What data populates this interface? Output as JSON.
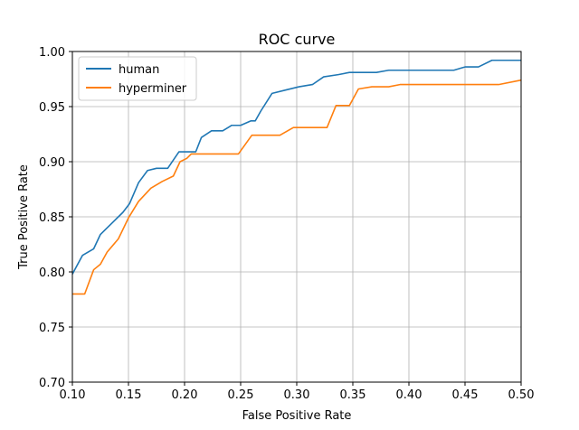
{
  "chart_data": {
    "type": "line",
    "title": "ROC curve",
    "xlabel": "False Positive Rate",
    "ylabel": "True Positive Rate",
    "xlim": [
      0.1,
      0.5
    ],
    "ylim": [
      0.7,
      1.0
    ],
    "xticks": [
      "0.10",
      "0.15",
      "0.20",
      "0.25",
      "0.30",
      "0.35",
      "0.40",
      "0.45",
      "0.50"
    ],
    "yticks": [
      "0.70",
      "0.75",
      "0.80",
      "0.85",
      "0.90",
      "0.95",
      "1.00"
    ],
    "xtick_values": [
      0.1,
      0.15,
      0.2,
      0.25,
      0.3,
      0.35,
      0.4,
      0.45,
      0.5
    ],
    "ytick_values": [
      0.7,
      0.75,
      0.8,
      0.85,
      0.9,
      0.95,
      1.0
    ],
    "grid": true,
    "legend_position": "top-left",
    "series": [
      {
        "name": "human",
        "color": "#1f77b4",
        "x": [
          0.1,
          0.109,
          0.119,
          0.125,
          0.131,
          0.138,
          0.145,
          0.151,
          0.159,
          0.167,
          0.175,
          0.185,
          0.195,
          0.202,
          0.21,
          0.215,
          0.224,
          0.234,
          0.242,
          0.25,
          0.259,
          0.263,
          0.268,
          0.278,
          0.29,
          0.302,
          0.314,
          0.324,
          0.337,
          0.347,
          0.356,
          0.371,
          0.382,
          0.39,
          0.4,
          0.41,
          0.42,
          0.432,
          0.44,
          0.45,
          0.462,
          0.474,
          0.487,
          0.5
        ],
        "y": [
          0.798,
          0.815,
          0.821,
          0.834,
          0.84,
          0.847,
          0.854,
          0.862,
          0.881,
          0.892,
          0.894,
          0.894,
          0.909,
          0.909,
          0.909,
          0.922,
          0.928,
          0.928,
          0.933,
          0.933,
          0.937,
          0.937,
          0.946,
          0.962,
          0.965,
          0.968,
          0.97,
          0.977,
          0.979,
          0.981,
          0.981,
          0.981,
          0.983,
          0.983,
          0.983,
          0.983,
          0.983,
          0.983,
          0.983,
          0.986,
          0.986,
          0.992,
          0.992,
          0.992
        ]
      },
      {
        "name": "hyperminer",
        "color": "#ff7f0e",
        "x": [
          0.1,
          0.111,
          0.119,
          0.125,
          0.131,
          0.141,
          0.15,
          0.159,
          0.17,
          0.18,
          0.19,
          0.196,
          0.202,
          0.206,
          0.22,
          0.24,
          0.248,
          0.26,
          0.272,
          0.285,
          0.297,
          0.315,
          0.327,
          0.335,
          0.347,
          0.355,
          0.367,
          0.382,
          0.392,
          0.4,
          0.42,
          0.44,
          0.46,
          0.48,
          0.5
        ],
        "y": [
          0.78,
          0.78,
          0.802,
          0.807,
          0.818,
          0.83,
          0.849,
          0.864,
          0.876,
          0.882,
          0.887,
          0.9,
          0.903,
          0.907,
          0.907,
          0.907,
          0.907,
          0.924,
          0.924,
          0.924,
          0.931,
          0.931,
          0.931,
          0.951,
          0.951,
          0.966,
          0.968,
          0.968,
          0.97,
          0.97,
          0.97,
          0.97,
          0.97,
          0.97,
          0.974
        ]
      }
    ]
  }
}
